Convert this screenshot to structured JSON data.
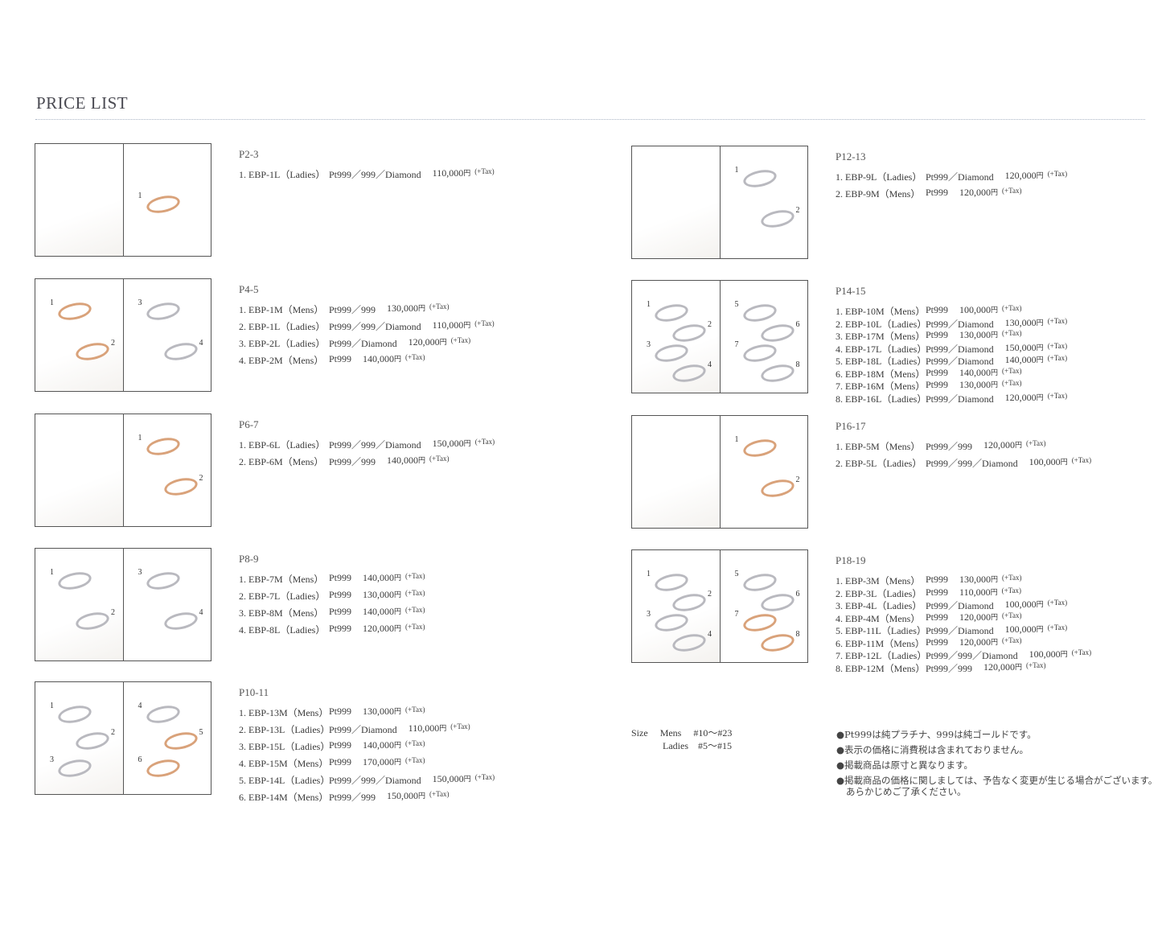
{
  "title": "PRICE LIST",
  "sections": [
    {
      "page": "P2-3",
      "labels": [
        "1"
      ],
      "gold": [
        true
      ],
      "items": [
        [
          "1. EBP-1L（Ladies）",
          "Pt999／999／Diamond",
          "110,000"
        ]
      ]
    },
    {
      "page": "P4-5",
      "labels": [
        "1",
        "2",
        "3",
        "4"
      ],
      "gold": [
        true,
        true,
        false,
        false
      ],
      "items": [
        [
          "1. EBP-1M（Mens）",
          "Pt999／999",
          "130,000"
        ],
        [
          "2. EBP-1L（Ladies）",
          "Pt999／999／Diamond",
          "110,000"
        ],
        [
          "3. EBP-2L（Ladies）",
          "Pt999／Diamond",
          "120,000"
        ],
        [
          "4. EBP-2M（Mens）",
          "Pt999",
          "140,000"
        ]
      ]
    },
    {
      "page": "P6-7",
      "labels": [
        "1",
        "2"
      ],
      "gold": [
        true,
        true
      ],
      "items": [
        [
          "1. EBP-6L（Ladies）",
          "Pt999／999／Diamond",
          "150,000"
        ],
        [
          "2. EBP-6M（Mens）",
          "Pt999／999",
          "140,000"
        ]
      ]
    },
    {
      "page": "P8-9",
      "labels": [
        "1",
        "2",
        "3",
        "4"
      ],
      "gold": [
        false,
        false,
        false,
        false
      ],
      "items": [
        [
          "1. EBP-7M（Mens）",
          "Pt999",
          "140,000"
        ],
        [
          "2. EBP-7L（Ladies）",
          "Pt999",
          "130,000"
        ],
        [
          "3. EBP-8M（Mens）",
          "Pt999",
          "140,000"
        ],
        [
          "4. EBP-8L（Ladies）",
          "Pt999",
          "120,000"
        ]
      ]
    },
    {
      "page": "P10-11",
      "labels": [
        "1",
        "2",
        "3",
        "4",
        "5",
        "6"
      ],
      "gold": [
        false,
        false,
        false,
        false,
        true,
        true
      ],
      "items": [
        [
          "1. EBP-13M（Mens）",
          "Pt999",
          "130,000"
        ],
        [
          "2. EBP-13L（Ladies）",
          "Pt999／Diamond",
          "110,000"
        ],
        [
          "3. EBP-15L（Ladies）",
          "Pt999",
          "140,000"
        ],
        [
          "4. EBP-15M（Mens）",
          "Pt999",
          "170,000"
        ],
        [
          "5. EBP-14L（Ladies）",
          "Pt999／999／Diamond",
          "150,000"
        ],
        [
          "6. EBP-14M（Mens）",
          "Pt999／999",
          "150,000"
        ]
      ]
    },
    {
      "page": "P12-13",
      "labels": [
        "1",
        "2"
      ],
      "gold": [
        false,
        false
      ],
      "items": [
        [
          "1. EBP-9L（Ladies）",
          "Pt999／Diamond",
          "120,000"
        ],
        [
          "2. EBP-9M（Mens）",
          "Pt999",
          "120,000"
        ]
      ]
    },
    {
      "page": "P14-15",
      "labels": [
        "1",
        "2",
        "3",
        "4",
        "5",
        "6",
        "7",
        "8"
      ],
      "gold": [
        false,
        false,
        false,
        false,
        false,
        false,
        false,
        false
      ],
      "items": [
        [
          "1. EBP-10M（Mens）",
          "Pt999",
          "100,000"
        ],
        [
          "2. EBP-10L（Ladies）",
          "Pt999／Diamond",
          "130,000"
        ],
        [
          "3. EBP-17M（Mens）",
          "Pt999",
          "130,000"
        ],
        [
          "4. EBP-17L（Ladies）",
          "Pt999／Diamond",
          "150,000"
        ],
        [
          "5. EBP-18L（Ladies）",
          "Pt999／Diamond",
          "140,000"
        ],
        [
          "6. EBP-18M（Mens）",
          "Pt999",
          "140,000"
        ],
        [
          "7. EBP-16M（Mens）",
          "Pt999",
          "130,000"
        ],
        [
          "8. EBP-16L（Ladies）",
          "Pt999／Diamond",
          "120,000"
        ]
      ]
    },
    {
      "page": "P16-17",
      "labels": [
        "1",
        "2"
      ],
      "gold": [
        true,
        true
      ],
      "items": [
        [
          "1. EBP-5M（Mens）",
          "Pt999／999",
          "120,000"
        ],
        [
          "2. EBP-5L（Ladies）",
          "Pt999／999／Diamond",
          "100,000"
        ]
      ]
    },
    {
      "page": "P18-19",
      "labels": [
        "1",
        "2",
        "3",
        "4",
        "5",
        "6",
        "7",
        "8"
      ],
      "gold": [
        false,
        false,
        false,
        false,
        false,
        false,
        true,
        true
      ],
      "items": [
        [
          "1. EBP-3M（Mens）",
          "Pt999",
          "130,000"
        ],
        [
          "2. EBP-3L（Ladies）",
          "Pt999",
          "110,000"
        ],
        [
          "3. EBP-4L（Ladies）",
          "Pt999／Diamond",
          "100,000"
        ],
        [
          "4. EBP-4M（Mens）",
          "Pt999",
          "120,000"
        ],
        [
          "5. EBP-11L（Ladies）",
          "Pt999／Diamond",
          "100,000"
        ],
        [
          "6. EBP-11M（Mens）",
          "Pt999",
          "120,000"
        ],
        [
          "7. EBP-12L（Ladies）",
          "Pt999／999／Diamond",
          "100,000"
        ],
        [
          "8. EBP-12M（Mens）",
          "Pt999／999",
          "120,000"
        ]
      ]
    }
  ],
  "yen": "円",
  "tax": "(+Tax)",
  "size": {
    "label": "Size",
    "mens": "Mens　 #10～#23",
    "ladies": "Ladies　#5～#15"
  },
  "notes": [
    "●Pt999は純プラチナ、999は純ゴールドです。",
    "●表示の価格に消費税は含まれておりません。",
    "●掲載商品は原寸と異なります。",
    "●掲載商品の価格に関しましては、予告なく変更が生じる場合がございます。"
  ],
  "notes_cont": "あらかじめご了承ください。",
  "colors": {
    "platinum": "#b9b9bf",
    "gold": "#d9a27a"
  }
}
